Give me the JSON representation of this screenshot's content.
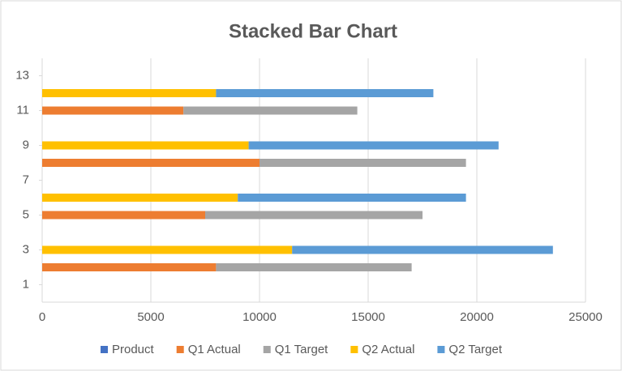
{
  "chart_data": {
    "type": "stacked_bar_horizontal",
    "title": "Stacked Bar Chart",
    "y": [
      2,
      3,
      5,
      6,
      8,
      9,
      11,
      12
    ],
    "series": [
      {
        "name": "Product",
        "color": "#4472c4",
        "values": [
          null,
          null,
          null,
          null,
          null,
          null,
          null,
          null
        ]
      },
      {
        "name": "Q1 Actual",
        "color": "#ed7d31",
        "values": [
          8000,
          null,
          7500,
          null,
          10000,
          null,
          6500,
          null
        ]
      },
      {
        "name": "Q1 Target",
        "color": "#a5a5a5",
        "values": [
          9000,
          null,
          10000,
          null,
          9500,
          null,
          8000,
          null
        ]
      },
      {
        "name": "Q2 Actual",
        "color": "#ffc000",
        "values": [
          null,
          11500,
          null,
          9000,
          null,
          9500,
          null,
          8000
        ]
      },
      {
        "name": "Q2 Target",
        "color": "#5b9bd5",
        "values": [
          null,
          12000,
          null,
          10500,
          null,
          11500,
          null,
          10000
        ]
      }
    ],
    "xlim": [
      0,
      25000
    ],
    "xticks": [
      0,
      5000,
      10000,
      15000,
      20000,
      25000
    ],
    "ylim": [
      0,
      14
    ],
    "yticks": [
      1,
      3,
      5,
      7,
      9,
      11,
      13
    ],
    "grid": true,
    "legend": "bottom"
  }
}
